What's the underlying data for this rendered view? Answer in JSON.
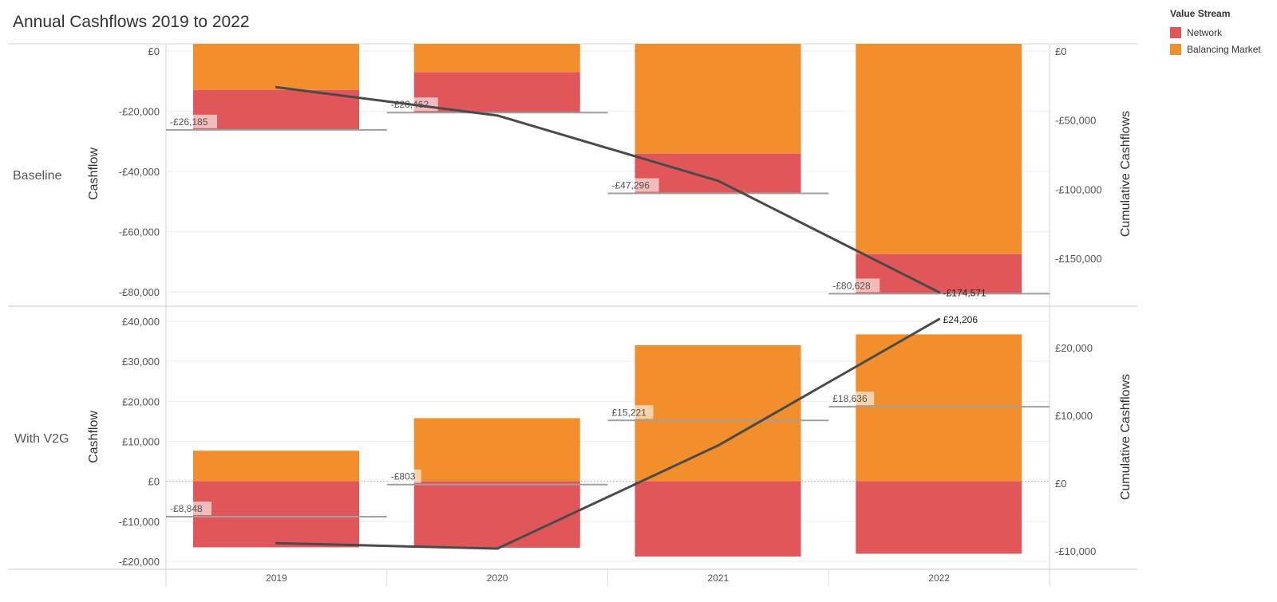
{
  "title": "Annual Cashflows 2019 to 2022",
  "legend": {
    "title": "Value Stream",
    "items": [
      {
        "label": "Network",
        "color": "#E15759"
      },
      {
        "label": "Balancing Market",
        "color": "#F28E2B"
      }
    ]
  },
  "colors": {
    "network": "#E15759",
    "balancing": "#F28E2B",
    "line": "#4a4a4a",
    "refline": "#a0a0a0"
  },
  "chart_data": [
    {
      "type": "bar",
      "panel": "Baseline",
      "categories": [
        "2019",
        "2020",
        "2021",
        "2022"
      ],
      "series": [
        {
          "name": "Network",
          "values": [
            -13250,
            -13400,
            -13200,
            -13150
          ]
        },
        {
          "name": "Balancing Market",
          "values": [
            -12935,
            -7062,
            -34096,
            -67478
          ]
        }
      ],
      "totals": [
        -26185,
        -20462,
        -47296,
        -80628
      ],
      "total_labels": [
        "-£26,185",
        "-£20,462",
        "-£47,296",
        "-£80,628"
      ],
      "cumulative": [
        -26185,
        -46647,
        -93943,
        -174571
      ],
      "cumulative_end_label": "-£174,571",
      "ylabel": "Cashflow",
      "ylabel_right": "Cumulative Cashflows",
      "ylim": [
        -83000,
        2500
      ],
      "y_ticks": [
        0,
        -20000,
        -40000,
        -60000,
        -80000
      ],
      "y_tick_labels": [
        "£0",
        "-£20,000",
        "-£40,000",
        "-£60,000",
        "-£80,000"
      ],
      "y2lim": [
        -183000,
        0
      ],
      "y2_ticks": [
        0,
        -50000,
        -100000,
        -150000
      ],
      "y2_tick_labels": [
        "£0",
        "-£50,000",
        "-£100,000",
        "-£150,000"
      ]
    },
    {
      "type": "bar",
      "panel": "With V2G",
      "categories": [
        "2019",
        "2020",
        "2021",
        "2022"
      ],
      "series": [
        {
          "name": "Network",
          "values": [
            -16500,
            -16600,
            -18800,
            -18100
          ]
        },
        {
          "name": "Balancing Market",
          "values": [
            7652,
            15797,
            34021,
            36736
          ]
        }
      ],
      "totals": [
        -8848,
        -803,
        15221,
        18636
      ],
      "total_labels": [
        "-£8,848",
        "-£803",
        "£15,221",
        "£18,636"
      ],
      "cumulative": [
        -8848,
        -9651,
        5570,
        24206
      ],
      "cumulative_end_label": "£24,206",
      "ylabel": "Cashflow",
      "ylabel_right": "Cumulative Cashflows",
      "ylim": [
        -21500,
        43000
      ],
      "y_ticks": [
        40000,
        30000,
        20000,
        10000,
        0,
        -10000,
        -20000
      ],
      "y_tick_labels": [
        "£40,000",
        "£30,000",
        "£20,000",
        "£10,000",
        "£0",
        "-£10,000",
        "-£20,000"
      ],
      "y2lim": [
        -12000,
        25700
      ],
      "y2_ticks": [
        20000,
        10000,
        0,
        -10000
      ],
      "y2_tick_labels": [
        "£20,000",
        "£10,000",
        "£0",
        "-£10,000"
      ]
    }
  ]
}
